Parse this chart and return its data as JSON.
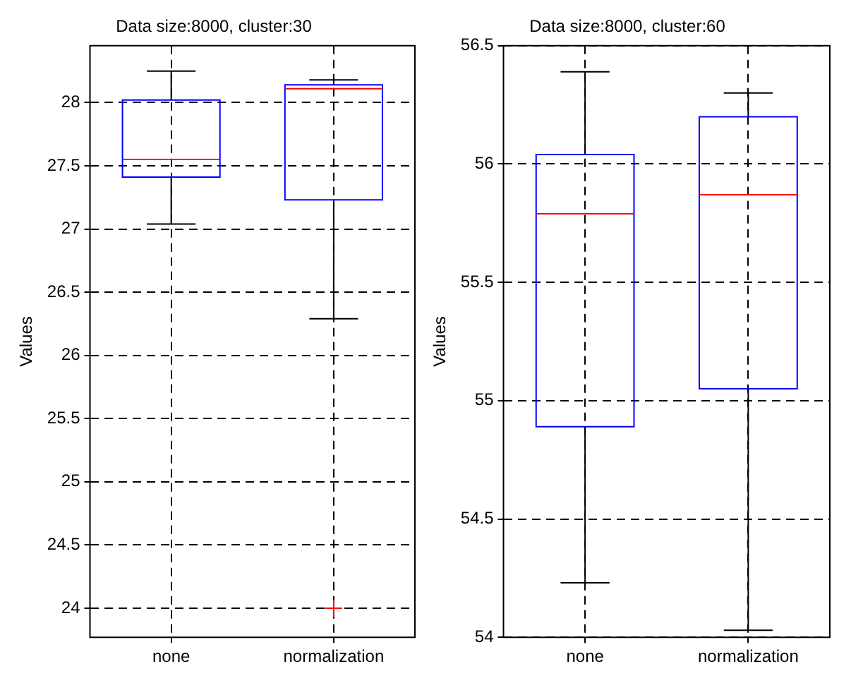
{
  "chart_data": [
    {
      "type": "box",
      "title": "Data size:8000, cluster:30",
      "ylabel": "Values",
      "categories": [
        "none",
        "normalization"
      ],
      "color": "#0000ff",
      "grid": true,
      "ylim": [
        23.77,
        28.45
      ],
      "yticks": [
        24,
        24.5,
        25,
        25.5,
        26,
        26.5,
        27,
        27.5,
        28
      ],
      "boxes": [
        {
          "low": 27.04,
          "q1": 27.41,
          "median": 27.55,
          "q3": 28.02,
          "high": 28.25
        },
        {
          "low": 26.29,
          "q1": 27.23,
          "median": 28.11,
          "q3": 28.14,
          "high": 28.18,
          "outliers": [
            24.0
          ]
        }
      ]
    },
    {
      "type": "box",
      "title": "Data size:8000, cluster:60",
      "ylabel": "Values",
      "categories": [
        "none",
        "normalization"
      ],
      "color": "#0000ff",
      "grid": true,
      "ylim": [
        54,
        56.5
      ],
      "yticks": [
        54,
        54.5,
        55,
        55.5,
        56,
        56.5
      ],
      "boxes": [
        {
          "low": 54.23,
          "q1": 54.89,
          "median": 55.79,
          "q3": 56.04,
          "high": 56.39
        },
        {
          "low": 54.03,
          "q1": 55.05,
          "median": 55.87,
          "q3": 56.2,
          "high": 56.3
        }
      ]
    }
  ]
}
